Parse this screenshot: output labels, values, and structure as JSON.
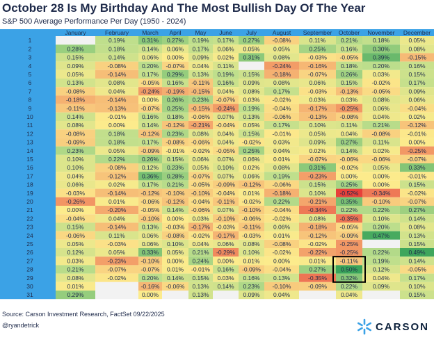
{
  "title": "October 28 Is My Birthday And The Most Bullish Day Of The Year",
  "subtitle": "S&P 500 Average Performance Per Day (1950 - 2024)",
  "source": "Source: Carson Investment Research, FactSet 09/22/2025",
  "handle": "@ryandetrick",
  "logo_text": "CARSON",
  "colors": {
    "header_bg": "#3ba2e6",
    "highlight_border": "#000000",
    "text": "#1e2a4a"
  },
  "chart_data": {
    "type": "heatmap",
    "title": "October 28 Is My Birthday And The Most Bullish Day Of The Year",
    "subtitle": "S&P 500 Average Performance Per Day (1950 - 2024)",
    "months": [
      "January",
      "February",
      "March",
      "April",
      "May",
      "June",
      "July",
      "August",
      "September",
      "October",
      "November",
      "December"
    ],
    "days": [
      "1",
      "2",
      "3",
      "4",
      "5",
      "6",
      "7",
      "8",
      "9",
      "10",
      "11",
      "12",
      "13",
      "14",
      "15",
      "16",
      "17",
      "18",
      "19",
      "20",
      "21",
      "22",
      "23",
      "24",
      "25",
      "26",
      "27",
      "28",
      "29",
      "30",
      "31"
    ],
    "highlight": {
      "day": "28",
      "month": "October"
    },
    "values": [
      [
        null,
        "0.19%",
        "0.31%",
        "0.27%",
        "0.19%",
        "0.17%",
        "0.27%",
        "-0.08%",
        "0.11%",
        "0.21%",
        "0.18%",
        "0.05%"
      ],
      [
        "0.28%",
        "0.18%",
        "0.14%",
        "0.06%",
        "0.17%",
        "0.06%",
        "0.05%",
        "0.05%",
        "0.25%",
        "0.16%",
        "0.30%",
        "0.08%"
      ],
      [
        "0.15%",
        "0.14%",
        "0.06%",
        "0.00%",
        "0.09%",
        "0.02%",
        "0.31%",
        "0.08%",
        "-0.03%",
        "-0.05%",
        "0.39%",
        "-0.15%"
      ],
      [
        "0.09%",
        "-0.08%",
        "0.20%",
        "-0.07%",
        "0.04%",
        "0.11%",
        null,
        "-0.24%",
        "-0.16%",
        "0.18%",
        "0.20%",
        "0.16%"
      ],
      [
        "0.05%",
        "-0.14%",
        "0.17%",
        "0.29%",
        "0.13%",
        "0.19%",
        "0.15%",
        "-0.18%",
        "-0.07%",
        "0.26%",
        "0.03%",
        "0.15%"
      ],
      [
        "0.13%",
        "0.08%",
        "-0.05%",
        "0.16%",
        "-0.11%",
        "0.16%",
        "0.09%",
        "0.08%",
        "0.06%",
        "0.15%",
        "-0.02%",
        "0.17%"
      ],
      [
        "-0.08%",
        "0.04%",
        "-0.24%",
        "-0.19%",
        "-0.15%",
        "0.04%",
        "0.08%",
        "0.17%",
        "-0.03%",
        "-0.13%",
        "-0.05%",
        "0.09%"
      ],
      [
        "-0.18%",
        "-0.14%",
        "0.00%",
        "0.26%",
        "0.23%",
        "-0.07%",
        "0.03%",
        "-0.02%",
        "0.03%",
        "0.03%",
        "0.08%",
        "0.06%"
      ],
      [
        "-0.11%",
        "-0.13%",
        "-0.07%",
        "0.25%",
        "-0.15%",
        "-0.24%",
        "0.19%",
        "-0.04%",
        "-0.17%",
        "-0.25%",
        "0.06%",
        "-0.04%"
      ],
      [
        "0.14%",
        "-0.01%",
        "0.16%",
        "0.18%",
        "-0.06%",
        "0.07%",
        "0.13%",
        "-0.06%",
        "-0.13%",
        "-0.08%",
        "0.04%",
        "0.02%"
      ],
      [
        "0.08%",
        "0.00%",
        "0.14%",
        "-0.12%",
        "-0.21%",
        "-0.04%",
        "0.05%",
        "0.17%",
        "0.10%",
        "0.11%",
        "0.21%",
        "-0.12%"
      ],
      [
        "-0.08%",
        "0.18%",
        "-0.12%",
        "0.23%",
        "0.08%",
        "0.04%",
        "0.15%",
        "-0.01%",
        "0.05%",
        "0.04%",
        "-0.08%",
        "-0.01%"
      ],
      [
        "-0.09%",
        "0.18%",
        "0.17%",
        "-0.08%",
        "-0.06%",
        "0.04%",
        "-0.02%",
        "0.03%",
        "0.09%",
        "0.27%",
        "0.11%",
        "0.00%"
      ],
      [
        "0.23%",
        "0.05%",
        "-0.09%",
        "-0.01%",
        "-0.02%",
        "-0.05%",
        "0.25%",
        "0.04%",
        "0.02%",
        "0.14%",
        "0.02%",
        "-0.25%"
      ],
      [
        "0.10%",
        "0.22%",
        "0.26%",
        "0.15%",
        "0.06%",
        "0.07%",
        "0.06%",
        "0.01%",
        "-0.07%",
        "-0.06%",
        "-0.06%",
        "-0.07%"
      ],
      [
        "0.10%",
        "-0.08%",
        "0.12%",
        "0.23%",
        "0.05%",
        "0.10%",
        "0.02%",
        "0.08%",
        "0.31%",
        "-0.02%",
        "0.05%",
        "0.33%"
      ],
      [
        "0.04%",
        "-0.12%",
        "0.36%",
        "0.28%",
        "-0.07%",
        "0.07%",
        "0.06%",
        "0.19%",
        "-0.23%",
        "0.00%",
        "0.00%",
        "-0.01%"
      ],
      [
        "0.06%",
        "0.02%",
        "0.17%",
        "0.21%",
        "-0.05%",
        "-0.09%",
        "-0.12%",
        "-0.06%",
        "0.15%",
        "0.25%",
        "0.00%",
        "0.15%"
      ],
      [
        "-0.03%",
        "-0.14%",
        "-0.12%",
        "-0.10%",
        "-0.10%",
        "-0.04%",
        "0.01%",
        "-0.18%",
        "0.10%",
        "-0.52%",
        "-0.34%",
        "-0.02%"
      ],
      [
        "-0.26%",
        "0.01%",
        "-0.06%",
        "-0.12%",
        "-0.04%",
        "-0.11%",
        "-0.02%",
        "0.22%",
        "-0.21%",
        "0.35%",
        "-0.10%",
        "-0.07%"
      ],
      [
        "0.00%",
        "-0.20%",
        "-0.05%",
        "0.14%",
        "-0.06%",
        "0.07%",
        "-0.10%",
        "-0.04%",
        "-0.34%",
        "0.22%",
        "0.22%",
        "0.27%"
      ],
      [
        "-0.04%",
        "0.04%",
        "-0.10%",
        "0.00%",
        "0.03%",
        "-0.10%",
        "-0.06%",
        "-0.02%",
        "0.08%",
        "-0.35%",
        "0.10%",
        "0.14%"
      ],
      [
        "0.15%",
        "-0.14%",
        "0.13%",
        "-0.03%",
        "-0.17%",
        "-0.03%",
        "-0.11%",
        "0.06%",
        "-0.18%",
        "-0.05%",
        "0.20%",
        "0.08%"
      ],
      [
        "-0.06%",
        "0.11%",
        "0.06%",
        "-0.08%",
        "-0.02%",
        "-0.17%",
        "-0.03%",
        "0.01%",
        "-0.12%",
        "-0.09%",
        "0.47%",
        "0.13%"
      ],
      [
        "0.05%",
        "-0.03%",
        "0.06%",
        "0.10%",
        "0.04%",
        "0.06%",
        "0.08%",
        "-0.08%",
        "-0.02%",
        "-0.25%",
        null,
        "0.15%"
      ],
      [
        "0.12%",
        "0.05%",
        "0.33%",
        "0.05%",
        "0.21%",
        "-0.29%",
        "0.10%",
        "-0.02%",
        "-0.22%",
        "-0.25%",
        "0.22%",
        "0.49%"
      ],
      [
        "0.03%",
        "-0.23%",
        "-0.10%",
        "0.00%",
        "0.24%",
        "0.00%",
        "0.01%",
        "0.00%",
        "0.01%",
        "-0.11%",
        "0.19%",
        "0.14%"
      ],
      [
        "0.21%",
        "-0.07%",
        "-0.07%",
        "0.01%",
        "-0.01%",
        "0.16%",
        "-0.09%",
        "-0.04%",
        "0.27%",
        "0.50%",
        "0.12%",
        "-0.05%"
      ],
      [
        "0.08%",
        "-0.02%",
        "0.20%",
        "0.14%",
        "0.15%",
        "0.03%",
        "0.16%",
        "0.13%",
        "-0.35%",
        "0.32%",
        "0.04%",
        "0.17%"
      ],
      [
        "0.01%",
        null,
        "-0.16%",
        "-0.06%",
        "0.13%",
        "0.14%",
        "0.23%",
        "-0.10%",
        "-0.09%",
        "0.22%",
        "0.09%",
        "0.10%"
      ],
      [
        "0.29%",
        null,
        "0.00%",
        null,
        "0.13%",
        null,
        "0.09%",
        "0.04%",
        null,
        "0.04%",
        null,
        "0.15%"
      ]
    ]
  }
}
